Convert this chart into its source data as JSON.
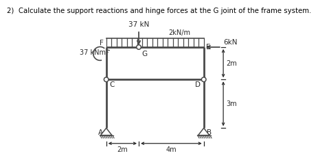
{
  "title": "2)  Calculate the support reactions and hinge forces at the G joint of the frame system.",
  "title_fontsize": 7.5,
  "bg_color": "#ffffff",
  "frame_color": "#4a4a4a",
  "label_color": "#2a2a2a",
  "points": {
    "A": [
      0,
      0
    ],
    "B": [
      6,
      0
    ],
    "C": [
      0,
      3
    ],
    "D": [
      6,
      3
    ],
    "F": [
      0,
      5
    ],
    "E": [
      6,
      5
    ],
    "G": [
      2,
      5
    ]
  },
  "dist_load_label": "2kN/m",
  "point_load_label": "37 kN",
  "moment_label": "37 kNm",
  "force_6kN_label": "6kN",
  "dim_2m_label": "2m",
  "dim_4m_label": "4m",
  "dim_2m_right_label": "2m",
  "dim_3m_right_label": "3m",
  "xlim": [
    -2.0,
    8.5
  ],
  "ylim": [
    -1.5,
    7.5
  ],
  "figw": 3.5,
  "figh": 2.13
}
